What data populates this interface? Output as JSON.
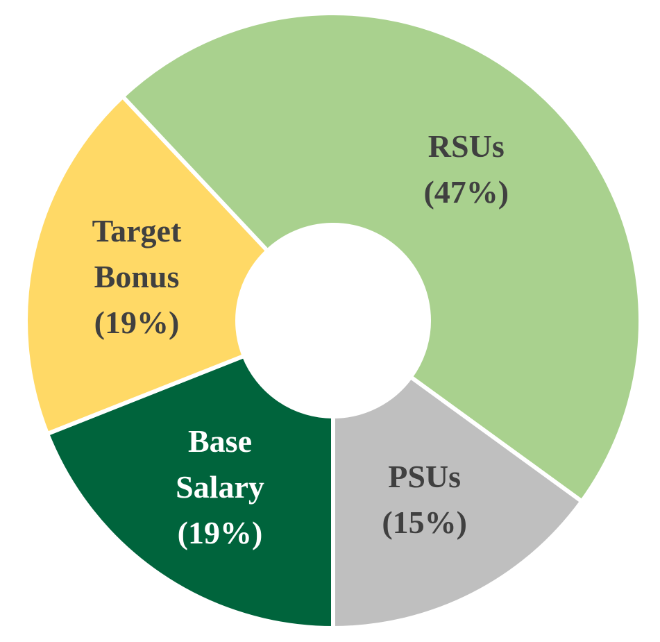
{
  "chart_data": {
    "type": "donut",
    "series": [
      {
        "name": "Base Salary",
        "color": "#00643c",
        "values": [
          19
        ],
        "value_labels": [
          "(19%)"
        ]
      },
      {
        "name": "Target Bonus",
        "color": "#ffd966",
        "values": [
          19
        ],
        "value_labels": [
          "(19%)"
        ]
      },
      {
        "name": "RSUs",
        "color": "#a9d18e",
        "values": [
          47
        ],
        "value_labels": [
          "(47%)"
        ]
      },
      {
        "name": "PSUs",
        "color": "#bfbfbf",
        "values": [
          15
        ],
        "value_labels": [
          "(15%)"
        ]
      }
    ]
  }
}
